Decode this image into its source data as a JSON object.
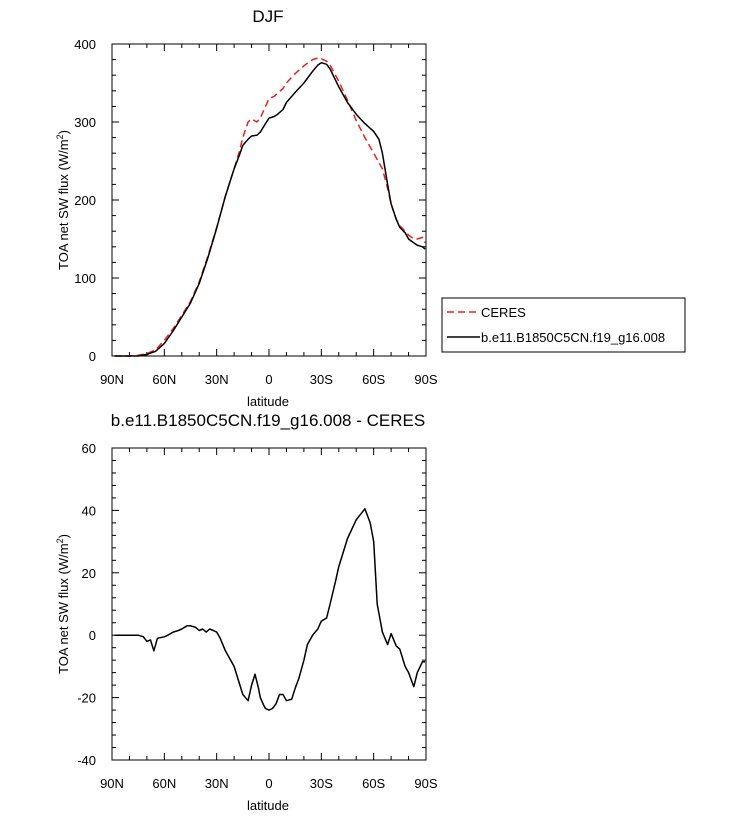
{
  "chart_data": [
    {
      "type": "line",
      "title": "DJF",
      "xlabel": "latitude",
      "ylabel": "TOA net SW flux (W/m",
      "ylabel_sup": "2",
      "ylabel_close": ")",
      "x_reversed": true,
      "xlim": [
        90,
        -90
      ],
      "ylim": [
        0,
        400
      ],
      "xtick_values": [
        90,
        60,
        30,
        0,
        -30,
        -60,
        -90
      ],
      "xtick_labels": [
        "90N",
        "60N",
        "30N",
        "0",
        "30S",
        "60S",
        "90S"
      ],
      "ytick_values": [
        0,
        100,
        200,
        300,
        400
      ],
      "ytick_labels": [
        "0",
        "100",
        "200",
        "300",
        "400"
      ],
      "grid": false,
      "legend_position": "right, outside plot",
      "series": [
        {
          "name": "CERES",
          "color": "#e8211d",
          "dash": "dashed",
          "x": [
            88.5,
            80,
            75,
            70,
            65,
            60,
            55,
            50,
            45,
            40,
            35,
            30,
            25,
            20,
            17,
            15,
            12,
            10,
            7,
            5,
            2,
            0,
            -3,
            -5,
            -8,
            -10,
            -15,
            -20,
            -25,
            -28,
            -30,
            -33,
            -35,
            -40,
            -45,
            -50,
            -55,
            -60,
            -65,
            -68,
            -70,
            -73,
            -75,
            -78,
            -80,
            -83,
            -85,
            -88,
            -89.5
          ],
          "y": [
            0,
            0,
            1,
            3,
            8,
            20,
            35,
            52,
            70,
            95,
            128,
            165,
            205,
            240,
            262,
            280,
            300,
            304,
            300,
            305,
            320,
            330,
            333,
            337,
            343,
            350,
            362,
            372,
            380,
            382,
            381,
            378,
            373,
            352,
            328,
            302,
            280,
            260,
            240,
            215,
            195,
            175,
            167,
            160,
            155,
            150,
            150,
            152,
            145
          ]
        },
        {
          "name": "b.e11.B1850C5CN.f19_g16.008",
          "color": "#000000",
          "dash": "solid",
          "x": [
            88.5,
            80,
            75,
            70,
            65,
            60,
            55,
            50,
            45,
            40,
            35,
            30,
            25,
            20,
            17,
            15,
            12,
            10,
            7,
            5,
            2,
            0,
            -3,
            -5,
            -8,
            -10,
            -15,
            -20,
            -25,
            -28,
            -30,
            -33,
            -35,
            -40,
            -45,
            -50,
            -55,
            -60,
            -63,
            -65,
            -68,
            -70,
            -73,
            -75,
            -78,
            -80,
            -83,
            -85,
            -88,
            -89.5
          ],
          "y": [
            0,
            0,
            0,
            2,
            6,
            16,
            32,
            50,
            68,
            93,
            126,
            164,
            205,
            240,
            257,
            270,
            278,
            282,
            283,
            287,
            298,
            305,
            307,
            310,
            316,
            325,
            338,
            350,
            365,
            373,
            376,
            374,
            368,
            345,
            325,
            310,
            298,
            288,
            278,
            260,
            220,
            195,
            175,
            165,
            158,
            150,
            145,
            142,
            140,
            137
          ]
        }
      ]
    },
    {
      "type": "line",
      "title": "b.e11.B1850C5CN.f19_g16.008 - CERES",
      "xlabel": "latitude",
      "ylabel": "TOA net SW flux (W/m",
      "ylabel_sup": "2",
      "ylabel_close": ")",
      "x_reversed": true,
      "xlim": [
        90,
        -90
      ],
      "ylim": [
        -40,
        60
      ],
      "xtick_values": [
        90,
        60,
        30,
        0,
        -30,
        -60,
        -90
      ],
      "xtick_labels": [
        "90N",
        "60N",
        "30N",
        "0",
        "30S",
        "60S",
        "90S"
      ],
      "ytick_values": [
        -40,
        -20,
        0,
        20,
        40,
        60
      ],
      "ytick_labels": [
        "-40",
        "-20",
        "0",
        "20",
        "40",
        "60"
      ],
      "grid": false,
      "series": [
        {
          "color": "#000000",
          "dash": "solid",
          "x": [
            88.5,
            85,
            80,
            75,
            72,
            70,
            68,
            66,
            64,
            60,
            58,
            55,
            52,
            50,
            47,
            45,
            42,
            40,
            38,
            36,
            34,
            32,
            30,
            28,
            25,
            20,
            15,
            12,
            10,
            8,
            6,
            5,
            3,
            2,
            0,
            -2,
            -4,
            -6,
            -8,
            -10,
            -13,
            -15,
            -17,
            -20,
            -22,
            -25,
            -28,
            -30,
            -33,
            -35,
            -38,
            -40,
            -45,
            -50,
            -55,
            -58,
            -60,
            -62,
            -65,
            -68,
            -70,
            -73,
            -75,
            -78,
            -80,
            -83,
            -85,
            -88,
            -89.5
          ],
          "y": [
            0,
            0,
            0,
            0,
            -0.5,
            -2,
            -1.5,
            -5,
            -1,
            -0.5,
            0,
            1,
            1.5,
            2,
            3,
            3,
            2.5,
            1.5,
            2,
            1,
            2,
            1.5,
            1,
            -1,
            -5,
            -10,
            -19,
            -21,
            -16,
            -12.5,
            -17,
            -20,
            -22.5,
            -23.5,
            -24,
            -23.5,
            -22,
            -19,
            -19,
            -21,
            -20.5,
            -17,
            -14,
            -8,
            -3,
            0,
            2,
            4.5,
            5.5,
            10,
            17,
            22,
            31,
            37,
            40.5,
            36,
            30,
            10,
            1,
            -3,
            0.5,
            -3.5,
            -4.5,
            -10,
            -12,
            -16.5,
            -12,
            -8.5,
            -8.5
          ]
        }
      ]
    }
  ]
}
